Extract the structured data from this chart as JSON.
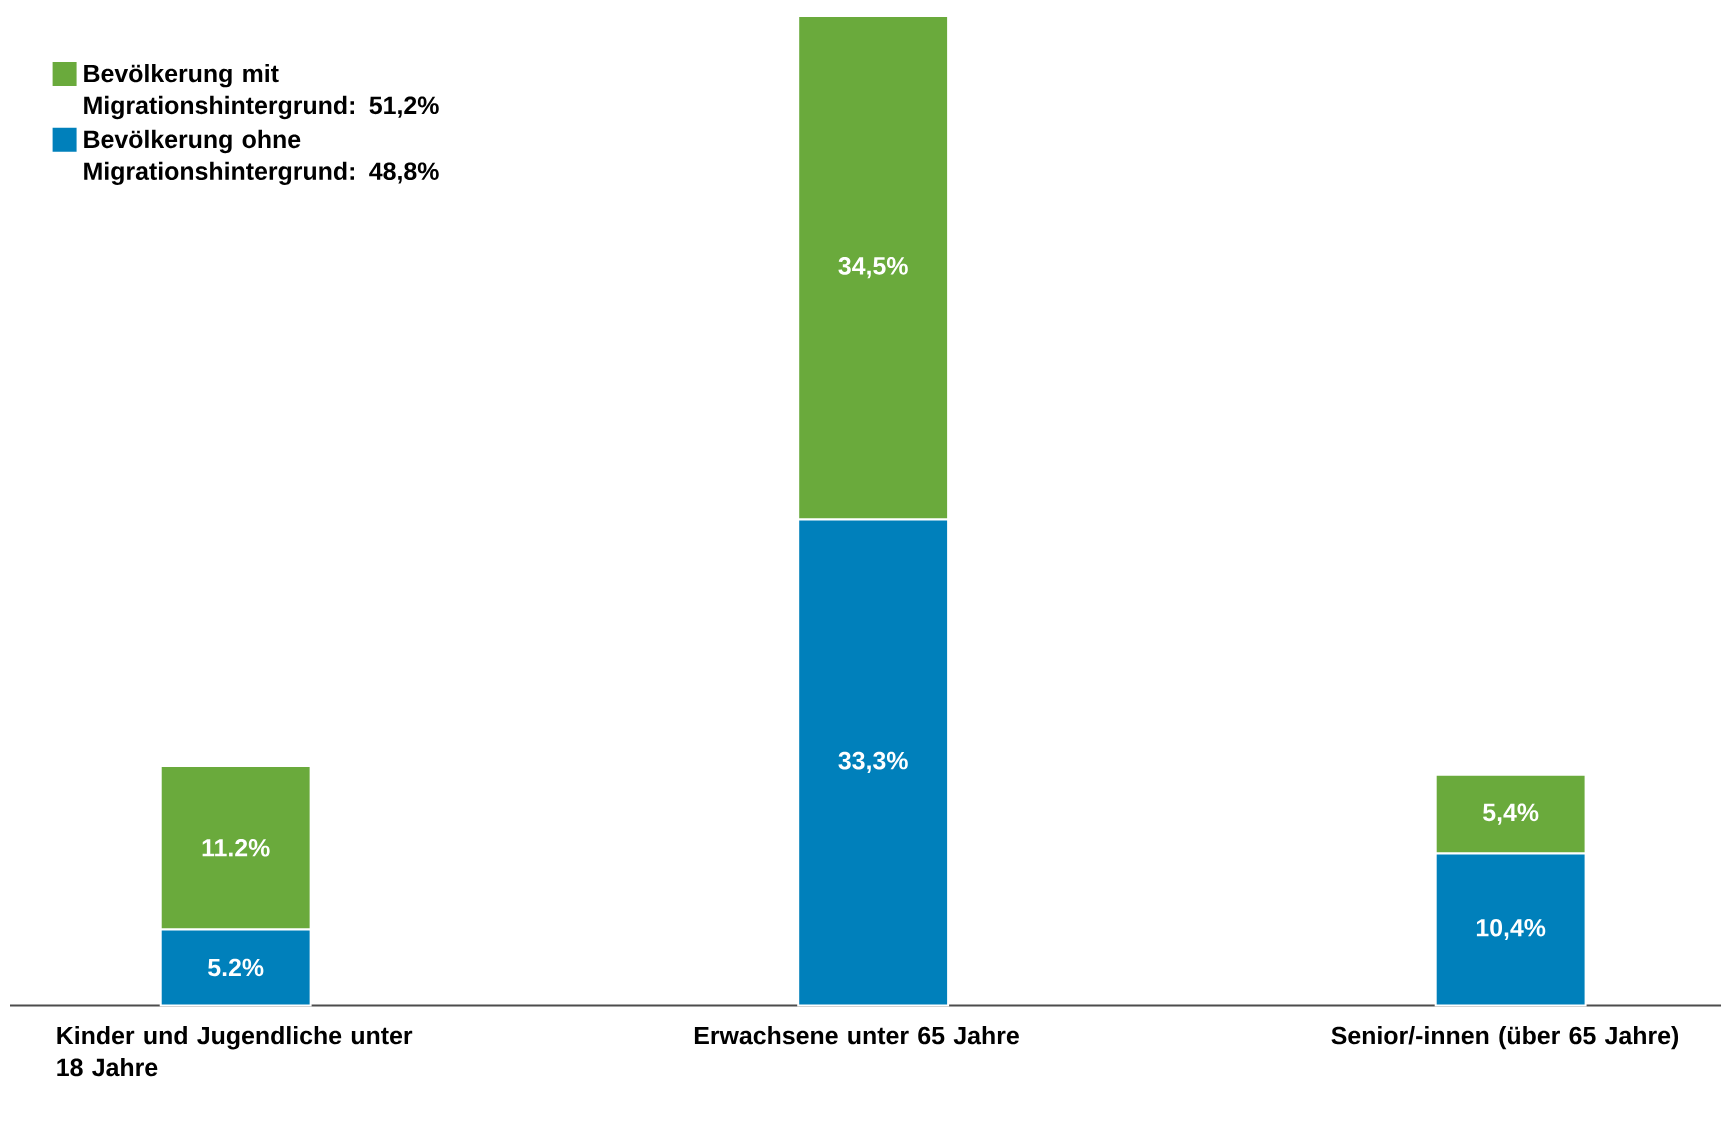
{
  "chart_data": {
    "type": "bar",
    "stacked": true,
    "legend": "top left",
    "categories": [
      "Kinder und Jugendliche unter 18 Jahre",
      "Erwachsene unter 65 Jahre",
      "Senior/-innen (über 65 Jahre)"
    ],
    "series": [
      {
        "name": "Bevölkerung ohne Migrationshintergrund: 48,8%",
        "color": "#0080bb",
        "values": [
          5.2,
          33.3,
          10.4
        ],
        "value_labels": [
          "5.2%",
          "33,3%",
          "10,4%"
        ]
      },
      {
        "name": "Bevölkerung mit Migrationshintergrund: 51,2%",
        "color": "#6aaa3c",
        "values": [
          11.2,
          34.5,
          5.4
        ],
        "value_labels": [
          "11.2%",
          "34,5%",
          "5,4%"
        ]
      }
    ]
  }
}
